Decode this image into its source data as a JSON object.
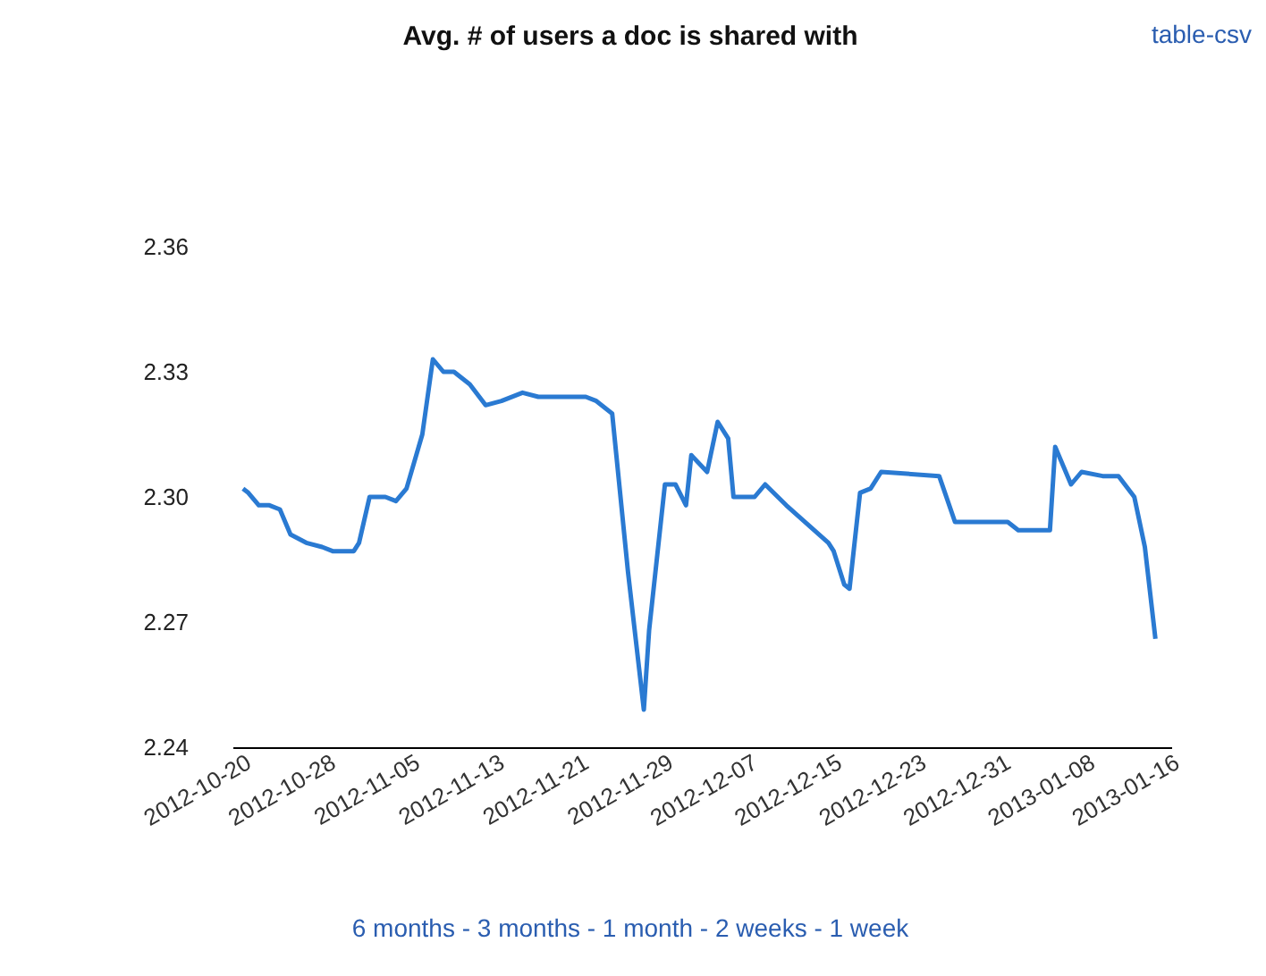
{
  "chart_data": {
    "type": "line",
    "title": "Avg. # of users a doc is shared with",
    "x": [
      "2012-10-20",
      "2012-10-20T12:00",
      "2012-10-21T12:00",
      "2012-10-22T12:00",
      "2012-10-23T12:00",
      "2012-10-24T12:00",
      "2012-10-26",
      "2012-10-27T12:00",
      "2012-10-28T12:00",
      "2012-10-30T12:00",
      "2012-10-31",
      "2012-11-01",
      "2012-11-02T12:00",
      "2012-11-03T12:00",
      "2012-11-04T12:00",
      "2012-11-06",
      "2012-11-07",
      "2012-11-08",
      "2012-11-09",
      "2012-11-10T12:00",
      "2012-11-12",
      "2012-11-13T12:00",
      "2012-11-15T12:00",
      "2012-11-17",
      "2012-11-19",
      "2012-11-21T12:00",
      "2012-11-22T12:00",
      "2012-11-24",
      "2012-11-25T12:00",
      "2012-11-27",
      "2012-11-27T12:00",
      "2012-11-29",
      "2012-11-30",
      "2012-12-01",
      "2012-12-01T12:00",
      "2012-12-03",
      "2012-12-04",
      "2012-12-05",
      "2012-12-05T12:00",
      "2012-12-07T12:00",
      "2012-12-08T12:00",
      "2012-12-10T12:00",
      "2012-12-14T12:00",
      "2012-12-15",
      "2012-12-16",
      "2012-12-16T12:00",
      "2012-12-17T12:00",
      "2012-12-18T12:00",
      "2012-12-19T12:00",
      "2012-12-25",
      "2012-12-26T12:00",
      "2012-12-31T12:00",
      "2013-01-01T12:00",
      "2013-01-04T12:00",
      "2013-01-05",
      "2013-01-06T12:00",
      "2013-01-07T12:00",
      "2013-01-09T12:00",
      "2013-01-11",
      "2013-01-12T12:00",
      "2013-01-13T12:00",
      "2013-01-14T12:00"
    ],
    "series": [
      {
        "color": "#2a7ad2",
        "values": [
          2.302,
          2.301,
          2.298,
          2.298,
          2.297,
          2.291,
          2.289,
          2.288,
          2.287,
          2.287,
          2.289,
          2.3,
          2.3,
          2.299,
          2.302,
          2.315,
          2.333,
          2.33,
          2.33,
          2.327,
          2.322,
          2.323,
          2.325,
          2.324,
          2.324,
          2.324,
          2.323,
          2.32,
          2.282,
          2.249,
          2.268,
          2.303,
          2.303,
          2.298,
          2.31,
          2.306,
          2.318,
          2.314,
          2.3,
          2.3,
          2.303,
          2.298,
          2.289,
          2.287,
          2.279,
          2.278,
          2.301,
          2.302,
          2.306,
          2.305,
          2.294,
          2.294,
          2.292,
          2.292,
          2.312,
          2.303,
          2.306,
          2.305,
          2.305,
          2.3,
          2.288,
          2.266
        ]
      }
    ],
    "xlim": [
      "2012-10-19",
      "2013-01-16"
    ],
    "xticks": [
      "2012-10-20",
      "2012-10-28",
      "2012-11-05",
      "2012-11-13",
      "2012-11-21",
      "2012-11-29",
      "2012-12-07",
      "2012-12-15",
      "2012-12-23",
      "2012-12-31",
      "2013-01-08",
      "2013-01-16"
    ],
    "ylim": [
      2.24,
      2.36
    ],
    "yticks": [
      {
        "value": 2.24,
        "label": "2.24"
      },
      {
        "value": 2.27,
        "label": "2.27"
      },
      {
        "value": 2.3,
        "label": "2.30"
      },
      {
        "value": 2.33,
        "label": "2.33"
      },
      {
        "value": 2.36,
        "label": "2.36"
      }
    ],
    "annotations": [
      "table-csv",
      "6 months - 3 months - 1 month - 2 weeks - 1 week"
    ]
  }
}
